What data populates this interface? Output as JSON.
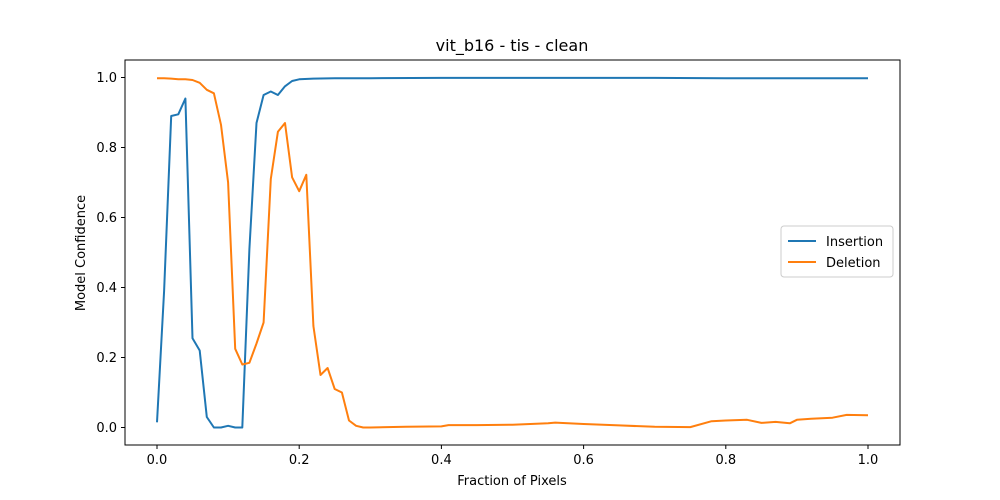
{
  "chart_data": {
    "type": "line",
    "title": "vit_b16 - tis - clean",
    "xlabel": "Fraction of Pixels",
    "ylabel": "Model Confidence",
    "xlim": [
      -0.045,
      1.045
    ],
    "ylim": [
      -0.05,
      1.05
    ],
    "xticks": [
      0.0,
      0.2,
      0.4,
      0.6,
      0.8,
      1.0
    ],
    "xtick_labels": [
      "0.0",
      "0.2",
      "0.4",
      "0.6",
      "0.8",
      "1.0"
    ],
    "yticks": [
      0.0,
      0.2,
      0.4,
      0.6,
      0.8,
      1.0
    ],
    "ytick_labels": [
      "0.0",
      "0.2",
      "0.4",
      "0.6",
      "0.8",
      "1.0"
    ],
    "grid": false,
    "legend_position": "center-right",
    "series": [
      {
        "name": "Insertion",
        "color": "#1f77b4",
        "x": [
          0.0,
          0.01,
          0.02,
          0.03,
          0.04,
          0.05,
          0.06,
          0.07,
          0.08,
          0.09,
          0.1,
          0.11,
          0.12,
          0.13,
          0.14,
          0.15,
          0.16,
          0.17,
          0.18,
          0.19,
          0.2,
          0.22,
          0.25,
          0.3,
          0.4,
          0.5,
          0.6,
          0.7,
          0.8,
          0.9,
          1.0
        ],
        "y": [
          0.015,
          0.39,
          0.89,
          0.895,
          0.94,
          0.255,
          0.22,
          0.03,
          0.0,
          0.0,
          0.005,
          0.0,
          0.0,
          0.51,
          0.87,
          0.95,
          0.96,
          0.95,
          0.975,
          0.99,
          0.995,
          0.997,
          0.998,
          0.998,
          0.999,
          0.999,
          0.999,
          0.999,
          0.998,
          0.998,
          0.998
        ]
      },
      {
        "name": "Deletion",
        "color": "#ff7f0e",
        "x": [
          0.0,
          0.01,
          0.02,
          0.03,
          0.04,
          0.05,
          0.06,
          0.07,
          0.08,
          0.09,
          0.1,
          0.11,
          0.12,
          0.13,
          0.14,
          0.15,
          0.16,
          0.17,
          0.18,
          0.19,
          0.2,
          0.21,
          0.22,
          0.23,
          0.24,
          0.25,
          0.26,
          0.27,
          0.28,
          0.29,
          0.3,
          0.35,
          0.4,
          0.41,
          0.45,
          0.5,
          0.55,
          0.56,
          0.6,
          0.65,
          0.7,
          0.75,
          0.78,
          0.8,
          0.83,
          0.85,
          0.87,
          0.89,
          0.9,
          0.92,
          0.95,
          0.97,
          1.0
        ],
        "y": [
          0.998,
          0.998,
          0.997,
          0.995,
          0.995,
          0.993,
          0.985,
          0.965,
          0.955,
          0.865,
          0.7,
          0.225,
          0.18,
          0.185,
          0.24,
          0.3,
          0.71,
          0.845,
          0.87,
          0.715,
          0.675,
          0.722,
          0.29,
          0.15,
          0.17,
          0.11,
          0.1,
          0.02,
          0.005,
          0.0,
          0.0,
          0.002,
          0.003,
          0.007,
          0.007,
          0.008,
          0.012,
          0.014,
          0.01,
          0.006,
          0.002,
          0.001,
          0.018,
          0.02,
          0.022,
          0.013,
          0.016,
          0.012,
          0.022,
          0.025,
          0.028,
          0.036,
          0.035
        ]
      }
    ]
  }
}
